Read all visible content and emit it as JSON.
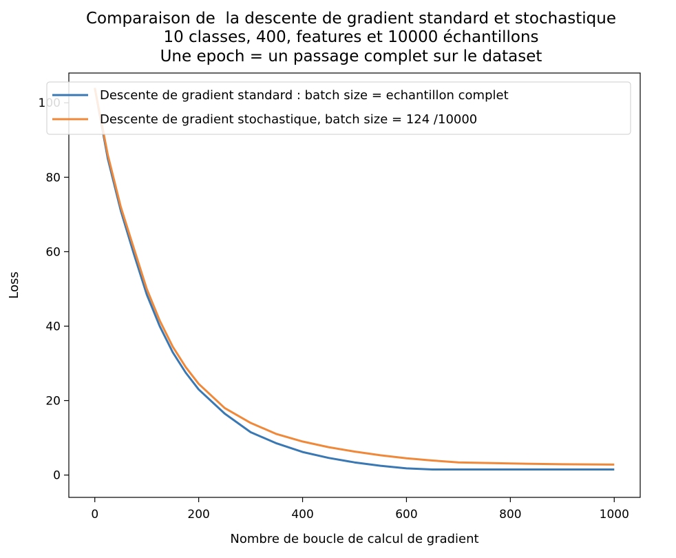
{
  "chart_data": {
    "type": "line",
    "title_lines": [
      "Comparaison de  la descente de gradient standard et stochastique",
      "10 classes, 400, features et 10000 échantillons",
      "Une epoch = un passage complet sur le dataset"
    ],
    "xlabel": "Nombre de boucle de calcul de gradient",
    "ylabel": "Loss",
    "xlim": [
      -50,
      1050
    ],
    "ylim": [
      -6,
      108
    ],
    "xticks": [
      0,
      200,
      400,
      600,
      800,
      1000
    ],
    "yticks": [
      0,
      20,
      40,
      60,
      80,
      100
    ],
    "grid": false,
    "legend_position": "top",
    "series": [
      {
        "name": "Descente de gradient standard : batch size = echantillon complet",
        "color": "#3a78b3",
        "x": [
          0,
          25,
          50,
          75,
          100,
          125,
          150,
          175,
          200,
          250,
          300,
          350,
          400,
          450,
          500,
          550,
          600,
          650,
          700,
          800,
          900,
          1000
        ],
        "y": [
          104,
          85,
          71,
          59.5,
          48.5,
          40,
          33,
          27.5,
          23,
          16.5,
          11.5,
          8.5,
          6.2,
          4.6,
          3.4,
          2.5,
          1.8,
          1.5,
          1.5,
          1.5,
          1.5,
          1.5
        ]
      },
      {
        "name": "Descente de gradient stochastique, batch size = 124 /10000",
        "color": "#f0883a",
        "x": [
          0,
          25,
          50,
          75,
          100,
          125,
          150,
          175,
          200,
          250,
          300,
          350,
          400,
          450,
          500,
          550,
          600,
          650,
          700,
          800,
          900,
          1000
        ],
        "y": [
          104,
          86,
          72,
          61,
          50,
          41.5,
          34.5,
          29,
          24.5,
          18,
          14,
          11,
          9,
          7.5,
          6.3,
          5.3,
          4.5,
          3.9,
          3.4,
          3.1,
          2.9,
          2.8
        ]
      }
    ]
  }
}
